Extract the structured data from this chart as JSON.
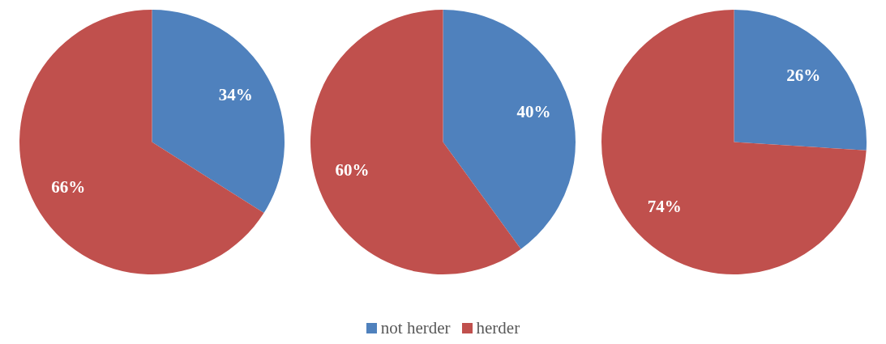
{
  "chart_data": [
    {
      "type": "pie",
      "categories": [
        "not herder",
        "herder"
      ],
      "values": [
        34,
        66
      ],
      "value_labels": [
        "34%",
        "66%"
      ],
      "colors": [
        "#4f81bd",
        "#c0504d"
      ],
      "legend": "bottom"
    },
    {
      "type": "pie",
      "categories": [
        null,
        null
      ],
      "values": [
        40,
        60
      ],
      "value_labels": [
        "40%",
        "60%"
      ],
      "colors": [
        "#4f81bd",
        "#c0504d"
      ]
    },
    {
      "type": "pie",
      "categories": [
        null,
        null
      ],
      "values": [
        26,
        74
      ],
      "value_labels": [
        "26%",
        "74%"
      ],
      "colors": [
        "#4f81bd",
        "#c0504d"
      ]
    }
  ]
}
